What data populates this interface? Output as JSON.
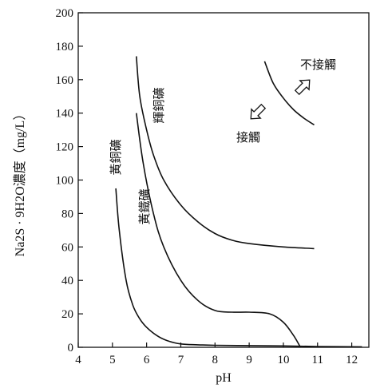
{
  "chart_data": {
    "type": "line",
    "xlabel": "pH",
    "ylabel": "Na2S · 9H2O濃度（mg/L）",
    "xlim": [
      4,
      12.5
    ],
    "ylim": [
      0,
      200
    ],
    "x_ticks": [
      4,
      5,
      6,
      7,
      8,
      9,
      10,
      11,
      12
    ],
    "y_ticks": [
      0,
      20,
      40,
      60,
      80,
      100,
      120,
      140,
      160,
      180,
      200
    ],
    "grid": false,
    "series": [
      {
        "name": "輝銅礦",
        "x": [
          5.7,
          5.8,
          6.0,
          6.2,
          6.5,
          7.0,
          7.5,
          8.0,
          8.5,
          9.0,
          10.0,
          10.9
        ],
        "y": [
          174,
          150,
          130,
          115,
          100,
          85,
          75,
          68,
          64,
          62,
          60,
          59
        ]
      },
      {
        "name": "黃鐵礦",
        "x": [
          5.7,
          5.9,
          6.2,
          6.5,
          7.0,
          7.5,
          8.0,
          8.5,
          9.0,
          9.6,
          10.0,
          10.3,
          10.5
        ],
        "y": [
          140,
          110,
          80,
          60,
          40,
          28,
          22,
          21,
          21,
          20,
          15,
          7,
          0
        ]
      },
      {
        "name": "黃銅礦",
        "x": [
          5.1,
          5.2,
          5.4,
          5.6,
          5.8,
          6.0,
          6.3,
          6.6,
          7.0,
          7.5,
          8.0,
          9.0,
          10.0,
          11.0,
          12.3
        ],
        "y": [
          95,
          70,
          40,
          25,
          17,
          12,
          7,
          4,
          2,
          1.5,
          1.2,
          1.0,
          0.8,
          0.5,
          0.3
        ]
      },
      {
        "name": "boundary",
        "x": [
          9.45,
          9.7,
          10.0,
          10.3,
          10.6,
          10.9
        ],
        "y": [
          171,
          158,
          149,
          142,
          137,
          133
        ]
      }
    ],
    "annotations": {
      "label_chalcocite": "輝銅礦",
      "label_pyrite": "黃鐵礦",
      "label_chalcopyrite": "黃銅礦",
      "no_contact": "不接觸",
      "contact": "接觸"
    }
  }
}
